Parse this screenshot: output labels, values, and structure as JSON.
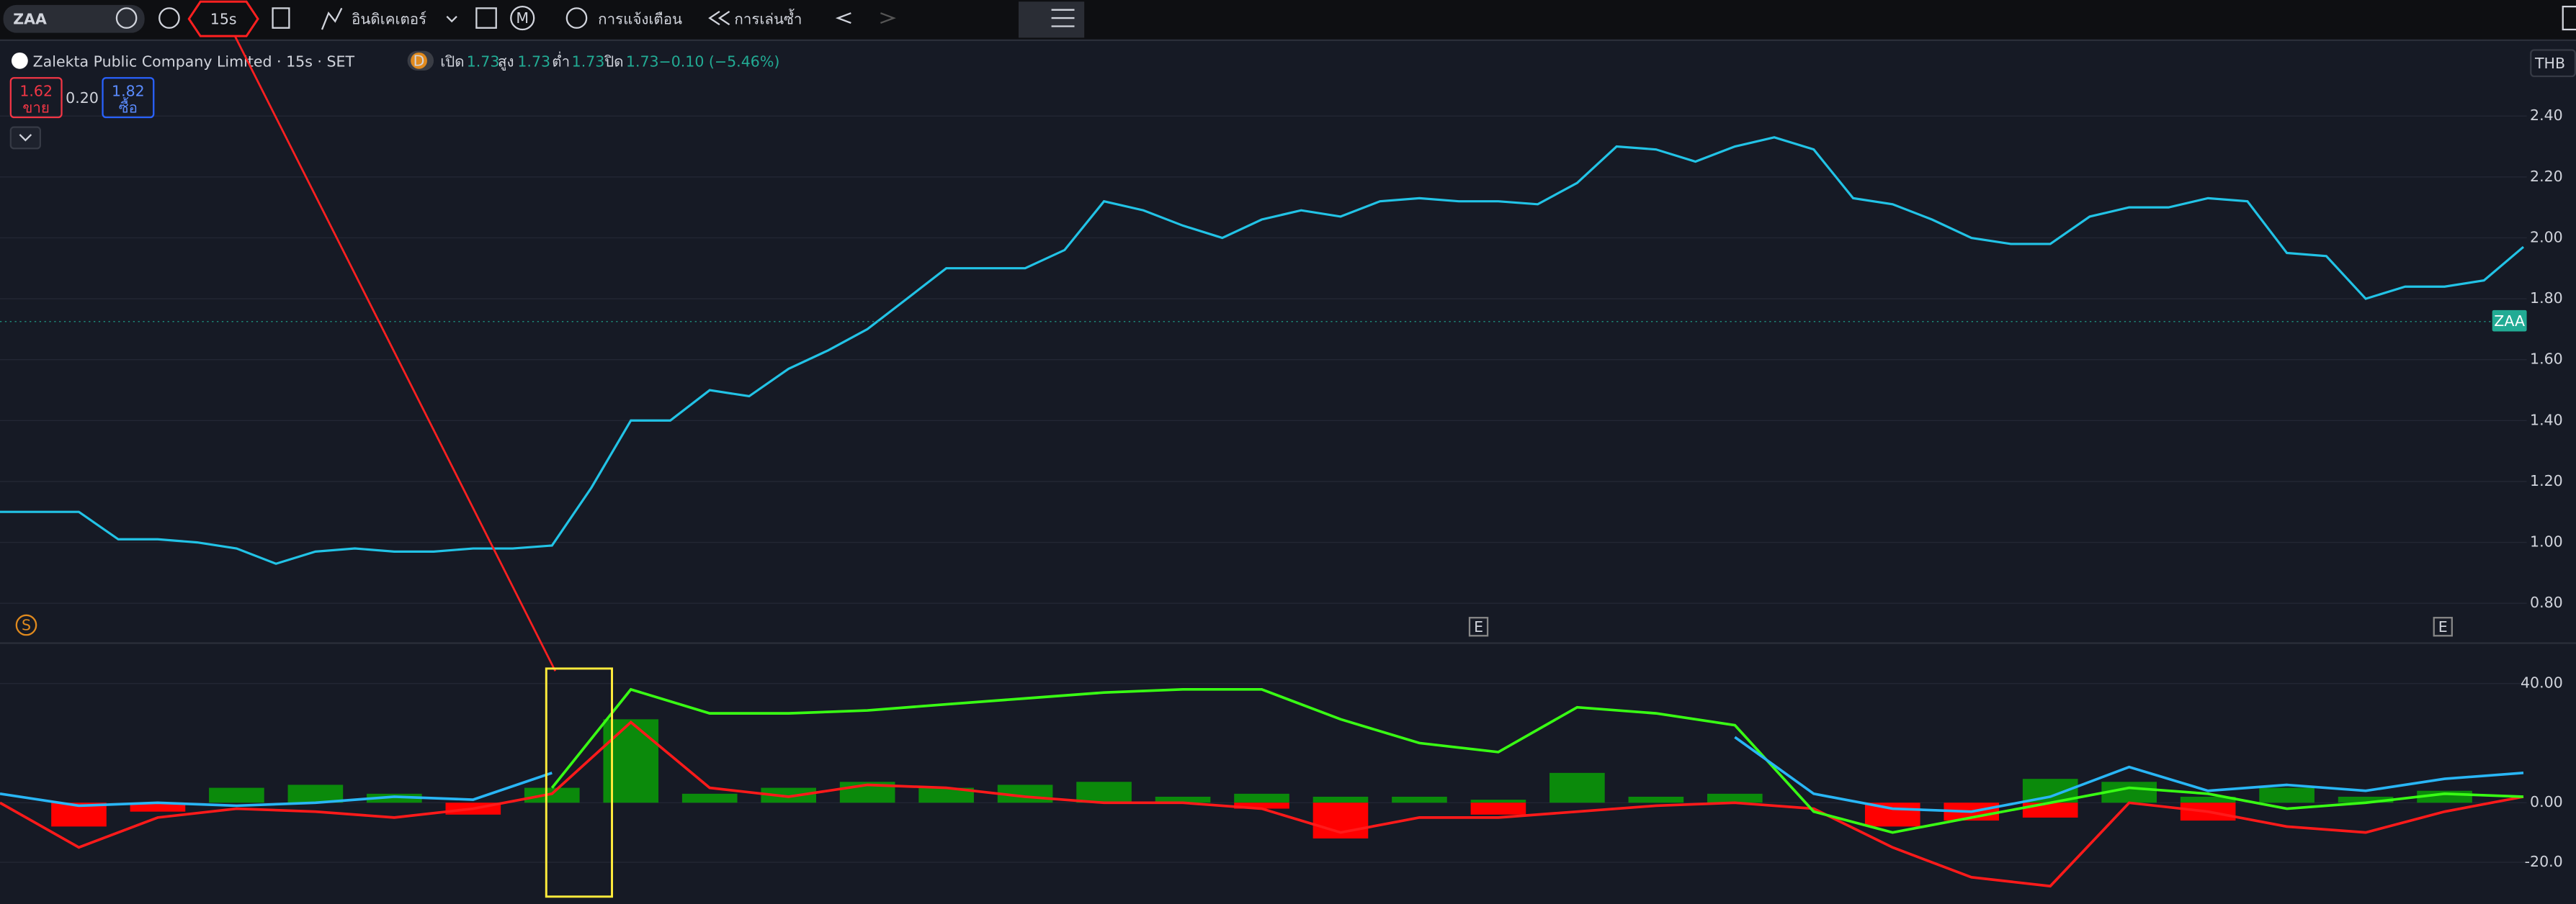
{
  "toolbar": {
    "symbol": "ZAA",
    "interval": "15s",
    "indicators": "อินดิเคเตอร์",
    "m": "M",
    "alert": "การแจ้งเตือน",
    "replay": "การเล่นซ้ำ"
  },
  "legend": {
    "title": "Zalekta Public Company Limited · 15s · SET",
    "badge": "D",
    "open_label": "เปิด",
    "open": "1.73",
    "high_label": "สูง",
    "high": "1.73",
    "low_label": "ต่ำ",
    "low": "1.73",
    "close_label": "ปิด",
    "close": "1.73",
    "change": "−0.10 (−5.46%)"
  },
  "order": {
    "sell_price": "1.62",
    "sell_label": "ขาย",
    "spread": "0.20",
    "buy_price": "1.82",
    "buy_label": "ซื้อ"
  },
  "currency": "THB",
  "last_label": "ZAA",
  "events": {
    "s": "S",
    "e1": "E",
    "e2": "E"
  },
  "chart_data": [
    {
      "type": "line",
      "color": "#22c3e6",
      "ylim": [
        0.68,
        2.63
      ],
      "yticks": [
        {
          "value": 0.8,
          "label": "0.80"
        },
        {
          "value": 1.0,
          "label": "1.00"
        },
        {
          "value": 1.2,
          "label": "1.20"
        },
        {
          "value": 1.4,
          "label": "1.40"
        },
        {
          "value": 1.6,
          "label": "1.60"
        },
        {
          "value": 1.8,
          "label": "1.80"
        },
        {
          "value": 2.0,
          "label": "2.00"
        },
        {
          "value": 2.2,
          "label": "2.20"
        },
        {
          "value": 2.4,
          "label": "2.40"
        }
      ],
      "grid": true,
      "values": [
        1.1,
        1.1,
        1.1,
        1.01,
        1.01,
        1.0,
        0.98,
        0.93,
        0.97,
        0.98,
        0.97,
        0.97,
        0.98,
        0.98,
        0.99,
        1.18,
        1.4,
        1.4,
        1.5,
        1.48,
        1.57,
        1.63,
        1.7,
        1.8,
        1.9,
        1.9,
        1.9,
        1.96,
        2.12,
        2.09,
        2.04,
        2.0,
        2.06,
        2.09,
        2.07,
        2.12,
        2.13,
        2.12,
        2.12,
        2.11,
        2.18,
        2.3,
        2.29,
        2.25,
        2.3,
        2.33,
        2.29,
        2.13,
        2.11,
        2.06,
        2.0,
        1.98,
        1.98,
        2.07,
        2.1,
        2.1,
        2.13,
        2.12,
        1.95,
        1.94,
        1.8,
        1.84,
        1.84,
        1.86,
        1.97
      ]
    },
    {
      "type": "combo",
      "ylim": [
        -34,
        53
      ],
      "yticks": [
        {
          "value": -20,
          "label": "-20.0"
        },
        {
          "value": 0,
          "label": "0.00"
        },
        {
          "value": 40,
          "label": "40.00"
        }
      ],
      "grid": true,
      "series": [
        {
          "type": "bar",
          "color": "#0b8a0b",
          "values": [
            0,
            0,
            0,
            5,
            6,
            3,
            0,
            5,
            28,
            3,
            5,
            7,
            5,
            6,
            7,
            2,
            3,
            2,
            2,
            1,
            10,
            2,
            3,
            0,
            0,
            0,
            8,
            7,
            2,
            5,
            2,
            4,
            0
          ]
        },
        {
          "type": "bar",
          "color": "#ff0000",
          "values": [
            0,
            -8,
            -3,
            0,
            0,
            0,
            -4,
            0,
            0,
            0,
            0,
            0,
            0,
            0,
            0,
            0,
            -2,
            -12,
            0,
            -4,
            0,
            0,
            0,
            0,
            -8,
            -6,
            -5,
            0,
            -6,
            0,
            0,
            0,
            0
          ]
        },
        {
          "type": "line",
          "color": "#ff1a1a",
          "values": [
            0,
            -15,
            -5,
            -2,
            -3,
            -5,
            -2,
            3,
            27,
            5,
            2,
            6,
            5,
            2,
            0,
            0,
            -2,
            -10,
            -5,
            -5,
            -3,
            -1,
            0,
            -2,
            -15,
            -25,
            -28,
            0,
            -3,
            -8,
            -10,
            -3,
            2
          ]
        },
        {
          "type": "line",
          "color": "#39ff14",
          "values": [
            null,
            null,
            null,
            null,
            null,
            null,
            null,
            5,
            38,
            30,
            30,
            31,
            33,
            35,
            37,
            38,
            38,
            28,
            20,
            17,
            32,
            30,
            26,
            -3,
            -10,
            -5,
            0,
            5,
            3,
            -2,
            0,
            3,
            2
          ]
        },
        {
          "type": "line",
          "color": "#29b6f6",
          "values": [
            3,
            -1,
            0,
            -1,
            0,
            2,
            1,
            10,
            null,
            null,
            null,
            null,
            null,
            null,
            null,
            null,
            null,
            null,
            null,
            null,
            null,
            null,
            22,
            3,
            -2,
            -3,
            2,
            12,
            4,
            6,
            4,
            8,
            10
          ]
        }
      ]
    }
  ]
}
